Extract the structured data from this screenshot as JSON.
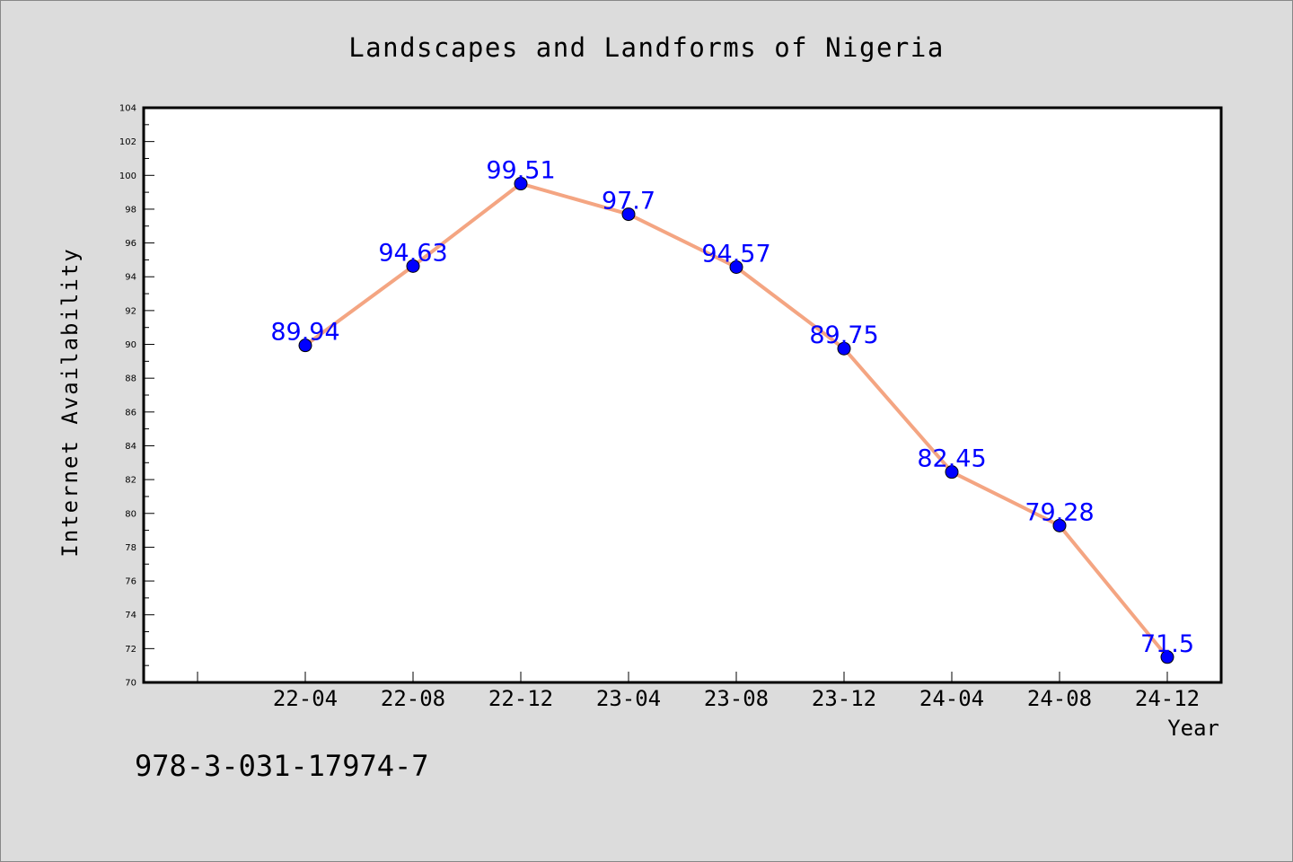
{
  "chart_data": {
    "type": "line",
    "title": "Landscapes and Landforms of Nigeria",
    "xlabel": "Year",
    "ylabel": "Internet Availability",
    "categories": [
      "22-04",
      "22-08",
      "22-12",
      "23-04",
      "23-08",
      "23-12",
      "24-04",
      "24-08",
      "24-12"
    ],
    "series": [
      {
        "values": [
          89.94,
          94.63,
          99.51,
          97.7,
          94.57,
          89.75,
          82.45,
          79.28,
          71.5
        ]
      }
    ],
    "data_labels": [
      "89.94",
      "94.63",
      "99.51",
      "97.7",
      "94.57",
      "89.75",
      "82.45",
      "79.28",
      "71.5"
    ],
    "ylim": [
      70,
      104
    ],
    "y_ticks": [
      70,
      72,
      74,
      76,
      78,
      80,
      82,
      84,
      86,
      88,
      90,
      92,
      94,
      96,
      98,
      100,
      102,
      104
    ],
    "grid": false,
    "line_color": "#f4a582",
    "marker_color": "#0000ff",
    "label_color": "#0000ff"
  },
  "footer": {
    "isbn": "978-3-031-17974-7"
  }
}
